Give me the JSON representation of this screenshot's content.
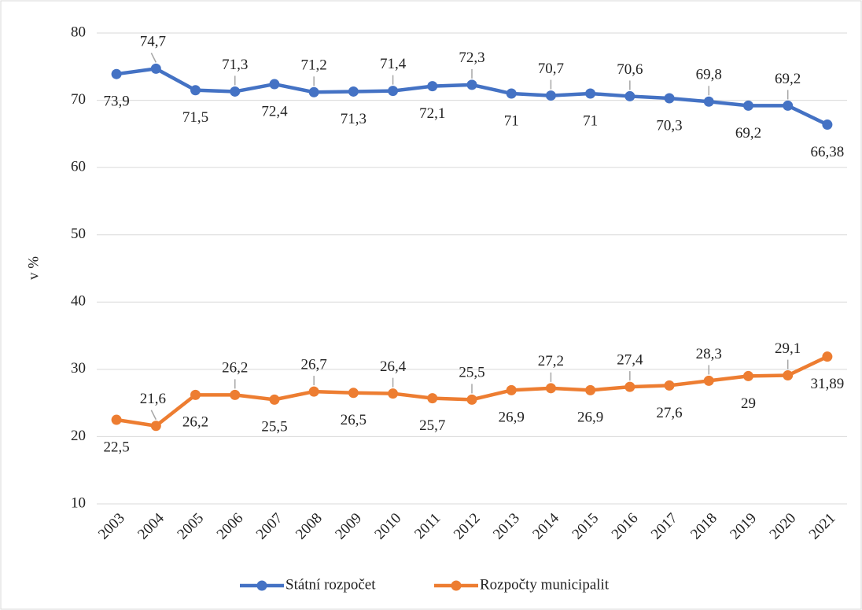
{
  "chart_data": {
    "type": "line",
    "ylabel": "v %",
    "categories": [
      "2003",
      "2004",
      "2005",
      "2006",
      "2007",
      "2008",
      "2009",
      "2010",
      "2011",
      "2012",
      "2013",
      "2014",
      "2015",
      "2016",
      "2017",
      "2018",
      "2019",
      "2020",
      "2021"
    ],
    "series": [
      {
        "name": "Státní rozpočet",
        "color": "#4472c4",
        "values": [
          73.9,
          74.7,
          71.5,
          71.3,
          72.4,
          71.2,
          71.3,
          71.4,
          72.1,
          72.3,
          71,
          70.7,
          71,
          70.6,
          70.3,
          69.8,
          69.2,
          69.2,
          66.38
        ],
        "value_labels": [
          "73,9",
          "74,7",
          "71,5",
          "71,3",
          "72,4",
          "71,2",
          "71,3",
          "71,4",
          "72,1",
          "72,3",
          "71",
          "70,7",
          "71",
          "70,6",
          "70,3",
          "69,8",
          "69,2",
          "69,2",
          "66,38"
        ]
      },
      {
        "name": "Rozpočty municipalit",
        "color": "#ed7d31",
        "values": [
          22.5,
          21.6,
          26.2,
          26.2,
          25.5,
          26.7,
          26.5,
          26.4,
          25.7,
          25.5,
          26.9,
          27.2,
          26.9,
          27.4,
          27.6,
          28.3,
          29,
          29.1,
          31.89
        ],
        "value_labels": [
          "22,5",
          "21,6",
          "26,2",
          "26,2",
          "25,5",
          "26,7",
          "26,5",
          "26,4",
          "25,7",
          "25,5",
          "26,9",
          "27,2",
          "26,9",
          "27,4",
          "27,6",
          "28,3",
          "29",
          "29,1",
          "31,89"
        ]
      }
    ],
    "ylim": [
      10,
      80
    ],
    "yticks": [
      10,
      20,
      30,
      40,
      50,
      60,
      70,
      80
    ],
    "grid": true,
    "legend": "bottom"
  }
}
